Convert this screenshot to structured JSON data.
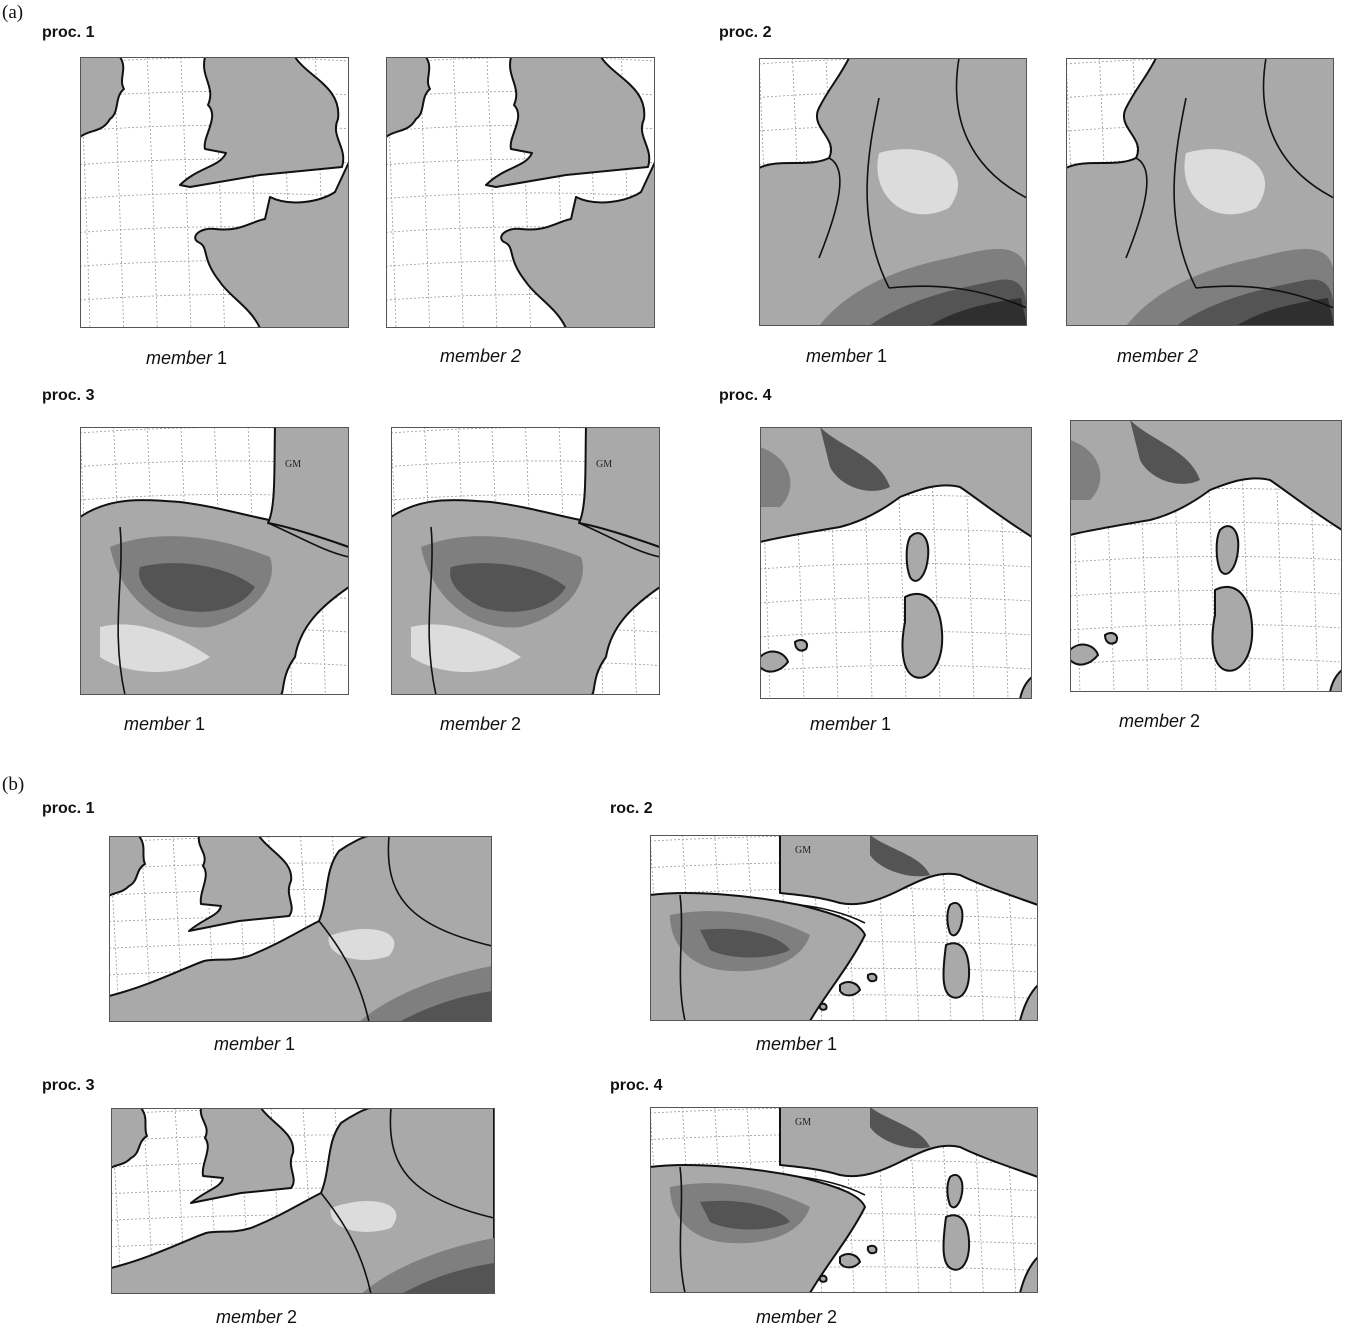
{
  "figure": {
    "part_a": {
      "label": "(a)",
      "groups": [
        {
          "proc": "proc. 1",
          "members": [
            {
              "word": "member",
              "num": " 1",
              "num_italic": false
            },
            {
              "word": "member",
              "num": " 2",
              "num_italic": true
            }
          ],
          "region": "british-isles-france"
        },
        {
          "proc": "proc. 2",
          "members": [
            {
              "word": "member",
              "num": " 1",
              "num_italic": false
            },
            {
              "word": "member",
              "num": " 2",
              "num_italic": true
            }
          ],
          "region": "benelux-alps"
        },
        {
          "proc": "proc. 3",
          "members": [
            {
              "word": "member",
              "num": " 1",
              "num_italic": false
            },
            {
              "word": "member",
              "num": " 2",
              "num_italic": false
            }
          ],
          "region": "iberia",
          "annotation": "GM"
        },
        {
          "proc": "proc. 4",
          "members": [
            {
              "word": "member",
              "num": " 1",
              "num_italic": false
            },
            {
              "word": "member",
              "num": " 2",
              "num_italic": false
            }
          ],
          "region": "italy-corsica-sardinia"
        }
      ]
    },
    "part_b": {
      "label": "(b)",
      "groups": [
        {
          "proc": "proc. 1",
          "member": {
            "word": "member",
            "num": " 1"
          },
          "region": "western-europe-north"
        },
        {
          "proc": "roc. 2",
          "member": {
            "word": "member",
            "num": " 1"
          },
          "region": "western-europe-south",
          "annotation": "GM"
        },
        {
          "proc": "proc. 3",
          "member": {
            "word": "member",
            "num": " 2"
          },
          "region": "western-europe-north"
        },
        {
          "proc": "proc. 4",
          "member": {
            "word": "member",
            "num": " 2"
          },
          "region": "western-europe-south",
          "annotation": "GM"
        }
      ]
    }
  },
  "colors": {
    "land": "#a9a9a9",
    "mid": "#7f7f7f",
    "high": "#545454",
    "peak": "#2f2f2f",
    "light": "#dcdcdc",
    "sea": "#ffffff",
    "coast": "#111111",
    "grid": "#9a9a9a"
  }
}
